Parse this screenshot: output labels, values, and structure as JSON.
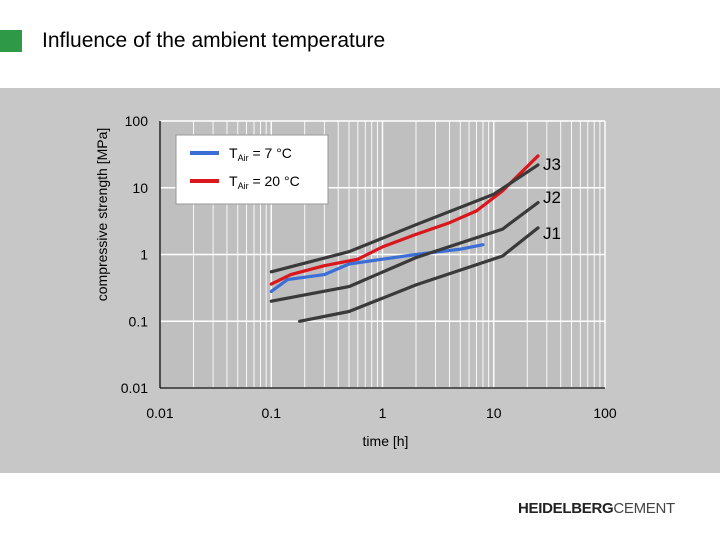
{
  "page": {
    "title": "Influence of the ambient temperature",
    "brand_bold": "HEIDELBERG",
    "brand_light": "CEMENT"
  },
  "colors": {
    "accent_green": "#2e9a47",
    "panel_grey": "#c7c7c7",
    "plot_area": "#bfbfbf",
    "grid": "#ffffff",
    "series_7c": "#3b6fd6",
    "series_20c": "#d9171c",
    "curves_j": "#3a3a3a"
  },
  "chart_data": {
    "type": "line",
    "xlabel": "time [h]",
    "ylabel": "compressive strength [MPa]",
    "xscale": "log",
    "yscale": "log",
    "xlim": [
      0.01,
      100
    ],
    "ylim": [
      0.01,
      100
    ],
    "x_ticks": [
      "0.01",
      "0.1",
      "1",
      "10",
      "100"
    ],
    "y_ticks": [
      "100",
      "10",
      "1",
      "0.1",
      "0.01"
    ],
    "grid": true,
    "legend": {
      "placement": "top-left",
      "entries": [
        {
          "prefix": "T",
          "sub": "Air",
          "suffix": " =   7 °C",
          "color": "#3b6fd6"
        },
        {
          "prefix": "T",
          "sub": "Air",
          "suffix": " = 20 °C",
          "color": "#d9171c"
        }
      ]
    },
    "series": [
      {
        "key": "t7",
        "color": "#3b6fd6",
        "x": [
          0.1,
          0.14,
          0.3,
          0.5,
          1,
          2,
          5,
          8
        ],
        "y": [
          0.28,
          0.42,
          0.5,
          0.72,
          0.85,
          1.0,
          1.2,
          1.4
        ]
      },
      {
        "key": "t20",
        "color": "#d9171c",
        "x": [
          0.1,
          0.15,
          0.3,
          0.6,
          1,
          2,
          4,
          7,
          12,
          25
        ],
        "y": [
          0.36,
          0.5,
          0.68,
          0.85,
          1.3,
          2.0,
          3.0,
          4.5,
          9,
          30
        ]
      },
      {
        "key": "J3",
        "label": "J3",
        "color": "#3a3a3a",
        "x": [
          0.1,
          0.5,
          2,
          10,
          25
        ],
        "y": [
          0.55,
          1.1,
          2.8,
          8,
          22
        ]
      },
      {
        "key": "J2",
        "label": "J2",
        "color": "#3a3a3a",
        "x": [
          0.1,
          0.5,
          2,
          12,
          25
        ],
        "y": [
          0.2,
          0.33,
          0.9,
          2.4,
          6
        ]
      },
      {
        "key": "J1",
        "label": "J1",
        "color": "#3a3a3a",
        "x": [
          0.18,
          0.5,
          2,
          12,
          25
        ],
        "y": [
          0.1,
          0.14,
          0.35,
          0.95,
          2.5
        ]
      }
    ],
    "curve_labels": [
      "J3",
      "J2",
      "J1"
    ]
  }
}
